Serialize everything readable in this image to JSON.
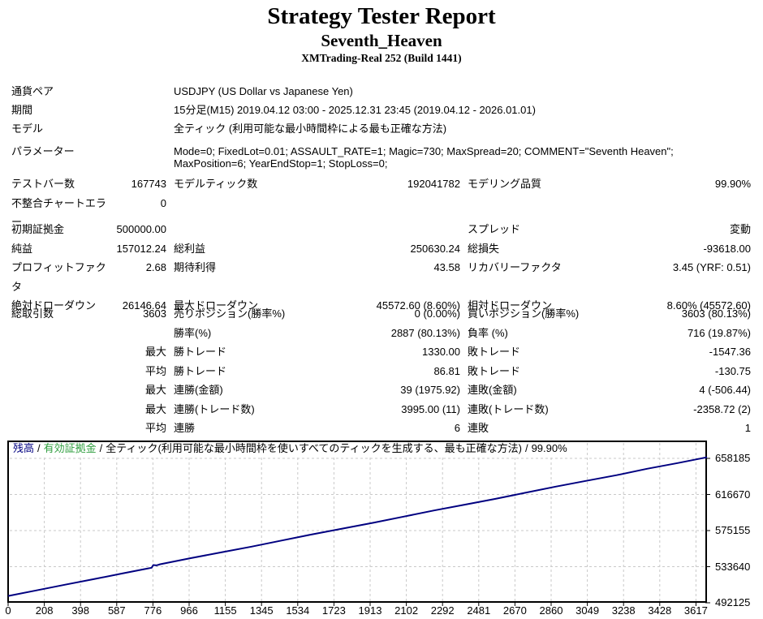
{
  "header": {
    "title": "Strategy Tester Report",
    "subtitle": "Seventh_Heaven",
    "server": "XMTrading-Real 252 (Build 1441)"
  },
  "info_rows": [
    {
      "label": "通貨ペア",
      "value": "USDJPY (US Dollar vs Japanese Yen)"
    },
    {
      "label": "期間",
      "value": "15分足(M15) 2019.04.12 03:00 - 2025.12.31 23:45 (2019.04.12 - 2026.01.01)"
    },
    {
      "label": "モデル",
      "value": "全ティック (利用可能な最小時間枠による最も正確な方法)"
    },
    {
      "label": "パラメーター",
      "value": "Mode=0; FixedLot=0.01; ASSAULT_RATE=1; Magic=730; MaxSpread=20; COMMENT=\"Seventh Heaven\"; MaxPosition=6; YearEndStop=1; StopLoss=0;"
    }
  ],
  "stats_rows": [
    [
      "テストバー数",
      "167743",
      "モデルティック数",
      "192041782",
      "モデリング品質",
      "99.90%"
    ],
    [
      "不整合チャートエラー",
      "0",
      "",
      "",
      "",
      ""
    ],
    [
      "初期証拠金",
      "500000.00",
      "",
      "",
      "スプレッド",
      "変動"
    ],
    [
      "純益",
      "157012.24",
      "総利益",
      "250630.24",
      "総損失",
      "-93618.00"
    ],
    [
      "プロフィットファクタ",
      "2.68",
      "期待利得",
      "43.58",
      "リカバリーファクタ",
      "3.45 (YRF: 0.51)"
    ],
    [
      "絶対ドローダウン",
      "26146.64",
      "最大ドローダウン",
      "45572.60 (8.60%)",
      "相対ドローダウン",
      "8.60% (45572.60)"
    ],
    [
      "総取引数",
      "3603",
      "売りポジション(勝率%)",
      "0 (0.00%)",
      "買いポジション(勝率%)",
      "3603 (80.13%)"
    ],
    [
      "",
      "",
      "勝率(%)",
      "2887 (80.13%)",
      "負率 (%)",
      "716 (19.87%)"
    ],
    [
      "",
      "最大",
      "勝トレード",
      "1330.00",
      "敗トレード",
      "-1547.36"
    ],
    [
      "",
      "平均",
      "勝トレード",
      "86.81",
      "敗トレード",
      "-130.75"
    ],
    [
      "",
      "最大",
      "連勝(金額)",
      "39 (1975.92)",
      "連敗(金額)",
      "4 (-506.44)"
    ],
    [
      "",
      "最大",
      "連勝(トレード数)",
      "3995.00 (11)",
      "連敗(トレード数)",
      "-2358.72 (2)"
    ],
    [
      "",
      "平均",
      "連勝",
      "6",
      "連敗",
      "1"
    ]
  ],
  "chart_data": {
    "type": "line",
    "legend": {
      "balance": "残高",
      "equity": "有効証拠金",
      "model": "全ティック(利用可能な最小時間枠を使いすべてのティックを生成する、最も正確な方法)",
      "quality": "99.90%",
      "separator": "/"
    },
    "legend_position": "top-left",
    "grid": true,
    "x_ticks": [
      0,
      208,
      398,
      587,
      776,
      966,
      1155,
      1345,
      1534,
      1723,
      1913,
      2102,
      2292,
      2481,
      2670,
      2860,
      3049,
      3238,
      3428,
      3617
    ],
    "y_ticks": [
      658185,
      616670,
      575155,
      533640,
      492125
    ],
    "x_range": [
      0,
      3617
    ],
    "y_range": [
      492125,
      658185
    ],
    "series": [
      {
        "name": "残高",
        "color": "#000080",
        "points": [
          [
            0,
            500000
          ],
          [
            150,
            506400
          ],
          [
            300,
            512900
          ],
          [
            450,
            519300
          ],
          [
            600,
            525800
          ],
          [
            720,
            530900
          ],
          [
            755,
            532400
          ],
          [
            763,
            535500
          ],
          [
            780,
            535100
          ],
          [
            800,
            536400
          ],
          [
            960,
            543400
          ],
          [
            1120,
            550100
          ],
          [
            1280,
            556700
          ],
          [
            1440,
            563800
          ],
          [
            1600,
            570900
          ],
          [
            1760,
            577500
          ],
          [
            1920,
            584100
          ],
          [
            2080,
            591200
          ],
          [
            2240,
            598300
          ],
          [
            2400,
            604900
          ],
          [
            2560,
            611500
          ],
          [
            2720,
            618600
          ],
          [
            2880,
            625700
          ],
          [
            3040,
            632300
          ],
          [
            3200,
            638900
          ],
          [
            3360,
            646200
          ],
          [
            3520,
            652800
          ],
          [
            3617,
            657012
          ]
        ]
      }
    ],
    "colors": {
      "balance_line": "#000080",
      "balance_label": "#000080",
      "equity_label": "#2e9e3e",
      "grid_line": "#c9c9c9",
      "chart_border": "#000000",
      "chart_background": "#ffffff"
    }
  }
}
